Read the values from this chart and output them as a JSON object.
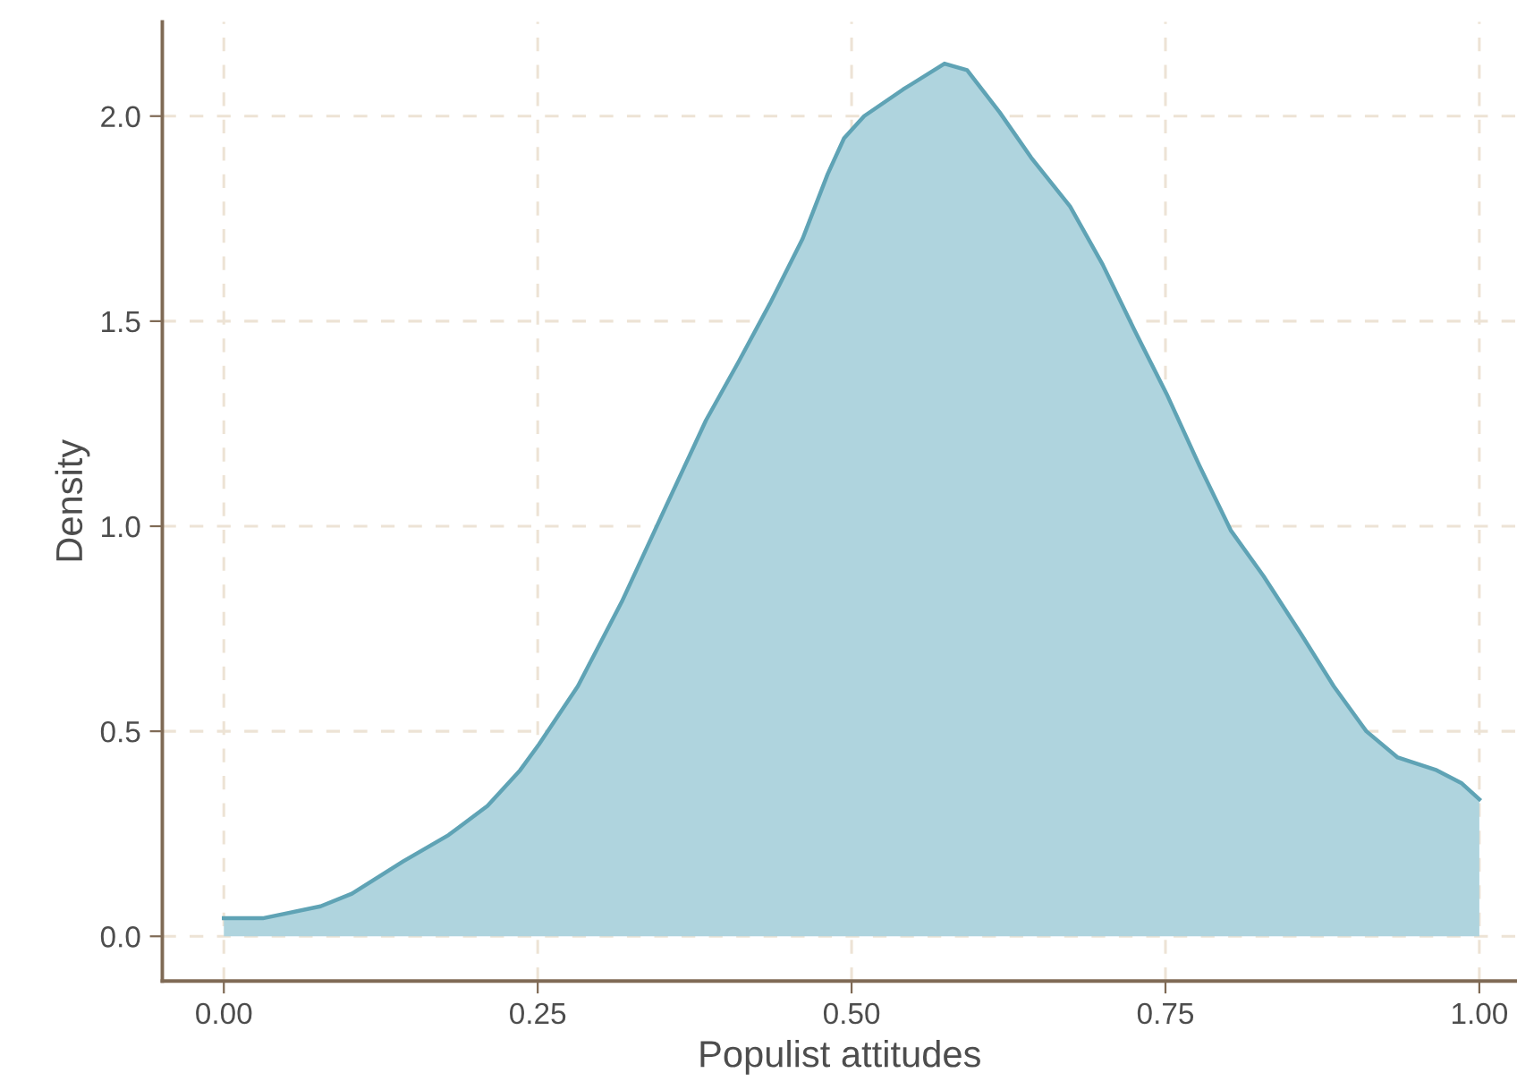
{
  "chart_data": {
    "type": "area",
    "xlabel": "Populist attitudes",
    "ylabel": "Density",
    "xlim": [
      -0.049,
      1.03
    ],
    "ylim": [
      -0.109,
      2.23
    ],
    "xticks": [
      {
        "value": 0,
        "label": "0.00"
      },
      {
        "value": 0.25,
        "label": "0.25"
      },
      {
        "value": 0.5,
        "label": "0.50"
      },
      {
        "value": 0.75,
        "label": "0.75"
      },
      {
        "value": 1,
        "label": "1.00"
      }
    ],
    "yticks": [
      {
        "value": 0,
        "label": "0.0"
      },
      {
        "value": 0.5,
        "label": "0.5"
      },
      {
        "value": 1,
        "label": "1.0"
      },
      {
        "value": 1.5,
        "label": "1.5"
      },
      {
        "value": 2,
        "label": "2.0"
      }
    ],
    "grid": true,
    "line_style": "solid",
    "series": [
      {
        "color": "#afd4de",
        "x": [
          0,
          0.031,
          0.077,
          0.102,
          0.143,
          0.179,
          0.21,
          0.236,
          0.251,
          0.282,
          0.317,
          0.348,
          0.384,
          0.41,
          0.435,
          0.461,
          0.481,
          0.494,
          0.51,
          0.541,
          0.574,
          0.592,
          0.618,
          0.643,
          0.674,
          0.7,
          0.725,
          0.751,
          0.777,
          0.802,
          0.828,
          0.858,
          0.884,
          0.91,
          0.935,
          0.966,
          0.986,
          1.0
        ],
        "values": [
          0.044,
          0.044,
          0.073,
          0.104,
          0.183,
          0.247,
          0.318,
          0.405,
          0.468,
          0.61,
          0.816,
          1.021,
          1.258,
          1.401,
          1.543,
          1.701,
          1.859,
          1.946,
          2.0,
          2.065,
          2.128,
          2.112,
          2.009,
          1.899,
          1.78,
          1.638,
          1.48,
          1.322,
          1.148,
          0.99,
          0.879,
          0.737,
          0.61,
          0.5,
          0.436,
          0.405,
          0.373,
          0.334
        ]
      }
    ]
  }
}
